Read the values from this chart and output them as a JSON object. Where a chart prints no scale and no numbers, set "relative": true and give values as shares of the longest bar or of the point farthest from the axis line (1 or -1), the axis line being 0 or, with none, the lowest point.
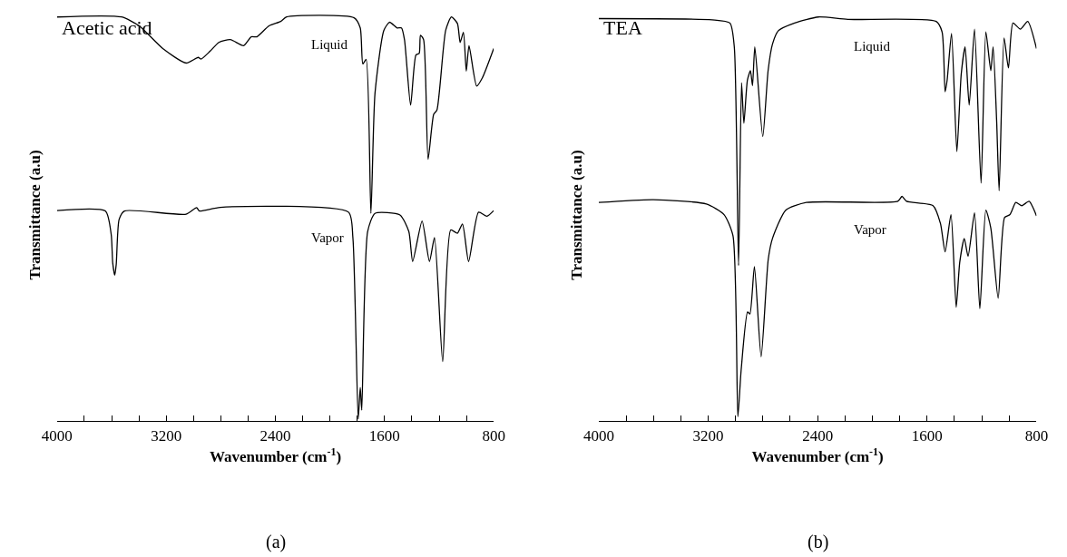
{
  "chart_data": [
    {
      "type": "line",
      "relative": true,
      "xlabel": "Wavenumber (cm$^{-1}$)",
      "ylabel": "Transmittance (a.u)",
      "annotations": [
        "Acetic acid",
        "(a)"
      ],
      "xlim": [
        4000,
        800
      ],
      "xticks": [
        4000,
        {
          "value": 3800,
          "label": null
        },
        {
          "value": 3600,
          "label": null
        },
        {
          "value": 3400,
          "label": null
        },
        3200,
        {
          "value": 3000,
          "label": null
        },
        {
          "value": 2800,
          "label": null
        },
        {
          "value": 2600,
          "label": null
        },
        2400,
        {
          "value": 2200,
          "label": null
        },
        {
          "value": 2000,
          "label": null
        },
        {
          "value": 1800,
          "label": null
        },
        1600,
        {
          "value": 1400,
          "label": null
        },
        {
          "value": 1200,
          "label": null
        },
        {
          "value": 1000,
          "label": null
        },
        800
      ],
      "tick_labels": "x",
      "grid": false,
      "legend": false,
      "marker": "none",
      "line_style": "solid",
      "series": [
        {
          "name": "Liquid",
          "color": "#000000",
          "x": [
            4000,
            3527,
            3398,
            3225,
            3054,
            2965,
            2944,
            2879,
            2814,
            2730,
            2633,
            2577,
            2535,
            2447,
            2361,
            2318,
            1823,
            1778,
            1759,
            1735,
            1700,
            1670,
            1605,
            1563,
            1508,
            1476,
            1454,
            1409,
            1370,
            1346,
            1337,
            1314,
            1281,
            1240,
            1216,
            1152,
            1110,
            1066,
            1046,
            1022,
            1001,
            981,
            925,
            884,
            800
          ],
          "values": [
            1.0,
            1.0,
            0.978,
            0.922,
            0.886,
            0.9,
            0.896,
            0.915,
            0.937,
            0.944,
            0.929,
            0.951,
            0.951,
            0.978,
            0.989,
            1.0,
            0.998,
            0.973,
            0.884,
            0.895,
            0.514,
            0.811,
            0.967,
            0.987,
            0.973,
            0.973,
            0.944,
            0.782,
            0.906,
            0.91,
            0.955,
            0.944,
            0.648,
            0.759,
            0.77,
            0.967,
            1.0,
            0.984,
            0.937,
            0.962,
            0.866,
            0.929,
            0.829,
            0.849,
            0.922
          ]
        },
        {
          "name": "Vapor",
          "color": "#000000",
          "x": [
            4000,
            3646,
            3603,
            3592,
            3577,
            3566,
            3545,
            3506,
            3054,
            2977,
            2957,
            2804,
            1864,
            1832,
            1793,
            1778,
            1767,
            1724,
            1670,
            1487,
            1422,
            1394,
            1325,
            1271,
            1234,
            1174,
            1115,
            1066,
            1029,
            984,
            911,
            850,
            800
          ],
          "values": [
            0.521,
            0.52,
            0.462,
            0.392,
            0.361,
            0.388,
            0.499,
            0.52,
            0.512,
            0.528,
            0.52,
            0.529,
            0.517,
            0.454,
            0.005,
            0.083,
            0.027,
            0.469,
            0.514,
            0.51,
            0.469,
            0.395,
            0.495,
            0.395,
            0.454,
            0.147,
            0.473,
            0.465,
            0.488,
            0.395,
            0.517,
            0.507,
            0.521
          ]
        }
      ]
    },
    {
      "type": "line",
      "relative": true,
      "xlabel": "Wavenumber (cm$^{-1}$)",
      "ylabel": "Transmittance (a.u)",
      "annotations": [
        "TEA",
        "(b)"
      ],
      "xlim": [
        4000,
        800
      ],
      "xticks": [
        4000,
        {
          "value": 3800,
          "label": null
        },
        {
          "value": 3600,
          "label": null
        },
        {
          "value": 3400,
          "label": null
        },
        3200,
        {
          "value": 3000,
          "label": null
        },
        {
          "value": 2800,
          "label": null
        },
        {
          "value": 2600,
          "label": null
        },
        2400,
        {
          "value": 2200,
          "label": null
        },
        {
          "value": 2000,
          "label": null
        },
        {
          "value": 1800,
          "label": null
        },
        1600,
        {
          "value": 1400,
          "label": null
        },
        {
          "value": 1200,
          "label": null
        },
        {
          "value": 1000,
          "label": null
        },
        800
      ],
      "tick_labels": "x",
      "grid": false,
      "legend": false,
      "marker": "none",
      "line_style": "solid",
      "series": [
        {
          "name": "Liquid",
          "color": "#000000",
          "x": [
            4000,
            3171,
            3041,
            3009,
            2978,
            2956,
            2939,
            2913,
            2891,
            2876,
            2859,
            2801,
            2762,
            2730,
            2687,
            2568,
            2395,
            2179,
            1533,
            1490,
            1468,
            1453,
            1421,
            1382,
            1350,
            1322,
            1292,
            1253,
            1205,
            1170,
            1134,
            1117,
            1091,
            1073,
            1037,
            1005,
            972,
            918,
            864,
            800
          ],
          "values": [
            0.996,
            0.993,
            0.985,
            0.926,
            0.385,
            0.837,
            0.737,
            0.844,
            0.867,
            0.83,
            0.926,
            0.704,
            0.867,
            0.933,
            0.966,
            0.985,
            1.0,
            0.994,
            0.989,
            0.963,
            0.815,
            0.844,
            0.959,
            0.667,
            0.859,
            0.926,
            0.782,
            0.97,
            0.589,
            0.963,
            0.867,
            0.926,
            0.741,
            0.57,
            0.948,
            0.874,
            0.985,
            0.97,
            0.989,
            0.922
          ]
        },
        {
          "name": "Vapor",
          "color": "#000000",
          "x": [
            4000,
            3601,
            3213,
            3084,
            3019,
            2983,
            2959,
            2912,
            2895,
            2862,
            2813,
            2761,
            2730,
            2633,
            2482,
            1814,
            1783,
            1750,
            1556,
            1502,
            1468,
            1425,
            1387,
            1361,
            1328,
            1300,
            1253,
            1214,
            1170,
            1134,
            1080,
            1033,
            994,
            951,
            907,
            854,
            800
          ],
          "values": [
            0.541,
            0.548,
            0.537,
            0.511,
            0.459,
            0.011,
            0.126,
            0.27,
            0.265,
            0.382,
            0.159,
            0.4,
            0.452,
            0.522,
            0.541,
            0.544,
            0.556,
            0.544,
            0.533,
            0.489,
            0.419,
            0.511,
            0.282,
            0.393,
            0.452,
            0.408,
            0.515,
            0.278,
            0.522,
            0.478,
            0.304,
            0.504,
            0.511,
            0.541,
            0.533,
            0.544,
            0.508
          ]
        }
      ]
    }
  ]
}
